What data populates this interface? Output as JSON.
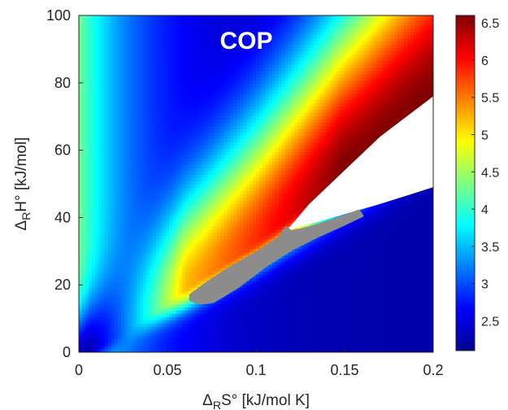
{
  "chart_data": {
    "type": "heatmap",
    "title": "COP",
    "xlabel": {
      "base": "Δ",
      "sub": "R",
      "rest": "S° [kJ/mol K]"
    },
    "ylabel": {
      "base": "Δ",
      "sub": "R",
      "rest": "H° [kJ/mol]"
    },
    "xlim": [
      0,
      0.2
    ],
    "ylim": [
      0,
      100
    ],
    "x_ticks": [
      {
        "value": 0,
        "label": "0"
      },
      {
        "value": 0.05,
        "label": "0.05"
      },
      {
        "value": 0.1,
        "label": "0.1"
      },
      {
        "value": 0.15,
        "label": "0.15"
      },
      {
        "value": 0.2,
        "label": "0.2"
      }
    ],
    "y_ticks": [
      {
        "value": 0,
        "label": "0"
      },
      {
        "value": 20,
        "label": "20"
      },
      {
        "value": 40,
        "label": "40"
      },
      {
        "value": 60,
        "label": "60"
      },
      {
        "value": 80,
        "label": "80"
      },
      {
        "value": 100,
        "label": "100"
      }
    ],
    "colorbar": {
      "range": [
        2.1,
        6.6
      ],
      "colormap": "jet",
      "ticks": [
        {
          "value": 2.5,
          "label": "2.5"
        },
        {
          "value": 3,
          "label": "3"
        },
        {
          "value": 3.5,
          "label": "3.5"
        },
        {
          "value": 4,
          "label": "4"
        },
        {
          "value": 4.5,
          "label": "4.5"
        },
        {
          "value": 5,
          "label": "5"
        },
        {
          "value": 5.5,
          "label": "5.5"
        },
        {
          "value": 6,
          "label": "6"
        },
        {
          "value": 6.5,
          "label": "6.5"
        }
      ]
    },
    "ridge": {
      "x": [
        0.06,
        0.08,
        0.1,
        0.12,
        0.14,
        0.16,
        0.18,
        0.2
      ],
      "y": [
        19,
        26,
        33,
        41,
        49,
        57,
        66,
        75
      ]
    },
    "undefined_region": {
      "color": "#ffffff",
      "upper_edge": {
        "x": [
          0.117,
          0.13,
          0.15,
          0.17,
          0.2
        ],
        "y": [
          36,
          44,
          54,
          64,
          76
        ]
      },
      "lower_edge": {
        "x": [
          0.117,
          0.13,
          0.15,
          0.17,
          0.2
        ],
        "y": [
          36,
          38,
          41,
          44,
          49
        ]
      }
    },
    "overlay_points": {
      "color": "#8c8c8c",
      "outline": [
        {
          "x": 0.063,
          "y": 15.5
        },
        {
          "x": 0.068,
          "y": 14.5
        },
        {
          "x": 0.076,
          "y": 15.0
        },
        {
          "x": 0.09,
          "y": 19.5
        },
        {
          "x": 0.105,
          "y": 25.5
        },
        {
          "x": 0.12,
          "y": 30.5
        },
        {
          "x": 0.135,
          "y": 34.5
        },
        {
          "x": 0.15,
          "y": 38.0
        },
        {
          "x": 0.16,
          "y": 40.5
        },
        {
          "x": 0.158,
          "y": 42.0
        },
        {
          "x": 0.145,
          "y": 39.5
        },
        {
          "x": 0.13,
          "y": 37.0
        },
        {
          "x": 0.12,
          "y": 35.8
        },
        {
          "x": 0.117,
          "y": 37.0
        },
        {
          "x": 0.113,
          "y": 34.0
        },
        {
          "x": 0.1,
          "y": 29.5
        },
        {
          "x": 0.085,
          "y": 25.0
        },
        {
          "x": 0.072,
          "y": 20.5
        },
        {
          "x": 0.063,
          "y": 17.0
        }
      ]
    }
  }
}
